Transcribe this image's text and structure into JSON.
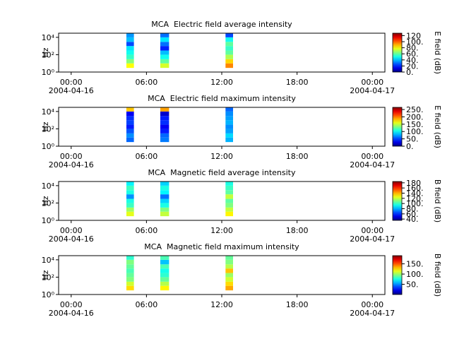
{
  "chart_data": [
    {
      "type": "spectrogram",
      "title": "MCA  Electric field average intensity",
      "ylabel": "Hz",
      "colorbar_label": "E field (dB)",
      "xlim": [
        -1,
        25
      ],
      "xticks": [
        {
          "value": 0,
          "label": "00:00"
        },
        {
          "value": 6,
          "label": "06:00"
        },
        {
          "value": 12,
          "label": "12:00"
        },
        {
          "value": 18,
          "label": "18:00"
        },
        {
          "value": 24,
          "label": "00:00"
        }
      ],
      "xtick_dates": [
        {
          "value": 0,
          "label": "2004-04-16"
        },
        {
          "value": 24,
          "label": "2004-04-17"
        }
      ],
      "log_y": true,
      "ylim": [
        1,
        30000
      ],
      "yticks": [
        {
          "value": 1,
          "label": "10⁰"
        },
        {
          "value": 100,
          "label": "10²"
        },
        {
          "value": 10000,
          "label": "10⁴"
        }
      ],
      "time_bins": [
        [
          4.4,
          5.0
        ],
        [
          7.1,
          7.8
        ],
        [
          12.3,
          12.9
        ]
      ],
      "freq_bins": [
        3,
        10,
        30,
        100,
        300,
        1000,
        3000,
        10000,
        30000
      ],
      "values": [
        [
          80,
          65,
          55,
          50,
          45,
          25,
          40,
          35
        ],
        [
          75,
          60,
          50,
          40,
          20,
          30,
          45,
          30
        ],
        [
          95,
          85,
          70,
          60,
          55,
          60,
          50,
          25
        ]
      ],
      "clim": [
        0,
        128
      ],
      "cticks": [
        {
          "value": 0,
          "label": "0."
        },
        {
          "value": 20,
          "label": "20."
        },
        {
          "value": 40,
          "label": "40."
        },
        {
          "value": 60,
          "label": "60."
        },
        {
          "value": 80,
          "label": "80."
        },
        {
          "value": 100,
          "label": "100."
        },
        120
      ]
    },
    {
      "type": "spectrogram",
      "title": "MCA  Electric field maximum intensity",
      "ylabel": "Hz",
      "colorbar_label": "E field (dB)",
      "xlim": [
        -1,
        25
      ],
      "xticks": [
        {
          "value": 0,
          "label": "00:00"
        },
        {
          "value": 6,
          "label": "06:00"
        },
        {
          "value": 12,
          "label": "12:00"
        },
        {
          "value": 18,
          "label": "18:00"
        },
        {
          "value": 24,
          "label": "00:00"
        }
      ],
      "xtick_dates": [
        {
          "value": 0,
          "label": "2004-04-16"
        },
        {
          "value": 24,
          "label": "2004-04-17"
        }
      ],
      "log_y": true,
      "ylim": [
        1,
        30000
      ],
      "yticks": [
        {
          "value": 1,
          "label": "10⁰"
        },
        {
          "value": 100,
          "label": "10²"
        },
        {
          "value": 10000,
          "label": "10⁴"
        }
      ],
      "time_bins": [
        [
          4.4,
          5.0
        ],
        [
          7.1,
          7.8
        ],
        [
          12.3,
          12.9
        ]
      ],
      "freq_bins": [
        3,
        10,
        30,
        100,
        300,
        1000,
        3000,
        10000,
        30000
      ],
      "values": [
        [
          60,
          70,
          55,
          40,
          50,
          45,
          30,
          180
        ],
        [
          65,
          60,
          40,
          30,
          45,
          40,
          20,
          190
        ],
        [
          80,
          90,
          75,
          70,
          80,
          75,
          70,
          60
        ]
      ],
      "clim": [
        0,
        265
      ],
      "cticks": [
        {
          "value": 0,
          "label": "0."
        },
        {
          "value": 50,
          "label": "50."
        },
        {
          "value": 100,
          "label": "100."
        },
        {
          "value": 150,
          "label": "150."
        },
        {
          "value": 200,
          "label": "200."
        },
        {
          "value": 250,
          "label": "250."
        }
      ]
    },
    {
      "type": "spectrogram",
      "title": "MCA  Magnetic field average intensity",
      "ylabel": "Hz",
      "colorbar_label": "B field (dB)",
      "xlim": [
        -1,
        25
      ],
      "xticks": [
        {
          "value": 0,
          "label": "00:00"
        },
        {
          "value": 6,
          "label": "06:00"
        },
        {
          "value": 12,
          "label": "12:00"
        },
        {
          "value": 18,
          "label": "18:00"
        },
        {
          "value": 24,
          "label": "00:00"
        }
      ],
      "xtick_dates": [
        {
          "value": 0,
          "label": "2004-04-16"
        },
        {
          "value": 24,
          "label": "2004-04-17"
        }
      ],
      "log_y": true,
      "ylim": [
        1,
        30000
      ],
      "yticks": [
        {
          "value": 1,
          "label": "10⁰"
        },
        {
          "value": 100,
          "label": "10²"
        },
        {
          "value": 10000,
          "label": "10⁴"
        }
      ],
      "time_bins": [
        [
          4.4,
          5.0
        ],
        [
          7.1,
          7.8
        ],
        [
          12.3,
          12.9
        ]
      ],
      "freq_bins": [
        3,
        10,
        30,
        100,
        300,
        1000,
        3000,
        10000,
        30000
      ],
      "values": [
        [
          125,
          115,
          100,
          95,
          75,
          95,
          100,
          90
        ],
        [
          120,
          110,
          95,
          85,
          70,
          90,
          95,
          85
        ],
        [
          130,
          120,
          110,
          105,
          120,
          105,
          100,
          95
        ]
      ],
      "clim": [
        35,
        185
      ],
      "cticks": [
        {
          "value": 40,
          "label": "40."
        },
        {
          "value": 60,
          "label": "60."
        },
        {
          "value": 80,
          "label": "80."
        },
        {
          "value": 100,
          "label": "100."
        },
        {
          "value": 120,
          "label": "120."
        },
        {
          "value": 140,
          "label": "140."
        },
        {
          "value": 160,
          "label": "160."
        },
        180
      ]
    },
    {
      "type": "spectrogram",
      "title": "MCA  Magnetic field maximum intensity",
      "ylabel": "Hz",
      "colorbar_label": "B field (dB)",
      "xlim": [
        -1,
        25
      ],
      "xticks": [
        {
          "value": 0,
          "label": "00:00"
        },
        {
          "value": 6,
          "label": "06:00"
        },
        {
          "value": 12,
          "label": "12:00"
        },
        {
          "value": 18,
          "label": "18:00"
        },
        {
          "value": 24,
          "label": "00:00"
        }
      ],
      "xtick_dates": [
        {
          "value": 0,
          "label": "2004-04-16"
        },
        {
          "value": 24,
          "label": "2004-04-17"
        }
      ],
      "log_y": true,
      "ylim": [
        1,
        30000
      ],
      "yticks": [
        {
          "value": 1,
          "label": "10⁰"
        },
        {
          "value": 100,
          "label": "10²"
        },
        {
          "value": 10000,
          "label": "10⁴"
        }
      ],
      "time_bins": [
        [
          4.4,
          5.0
        ],
        [
          7.1,
          7.8
        ],
        [
          12.3,
          12.9
        ]
      ],
      "freq_bins": [
        3,
        10,
        30,
        100,
        300,
        1000,
        3000,
        10000,
        30000
      ],
      "values": [
        [
          125,
          110,
          95,
          90,
          85,
          90,
          95,
          80
        ],
        [
          120,
          105,
          90,
          80,
          75,
          85,
          60,
          85
        ],
        [
          135,
          125,
          110,
          100,
          130,
          105,
          95,
          90
        ]
      ],
      "clim": [
        0,
        190
      ],
      "cticks": [
        {
          "value": 50,
          "label": "50."
        },
        {
          "value": 100,
          "label": "100."
        },
        {
          "value": 150,
          "label": "150."
        }
      ]
    }
  ]
}
